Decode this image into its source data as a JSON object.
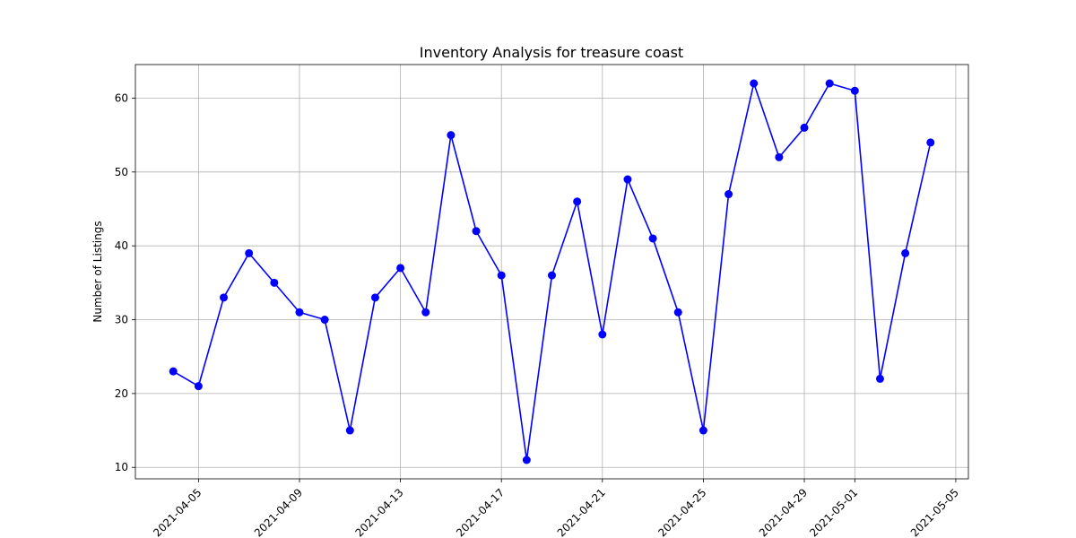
{
  "chart_data": {
    "type": "line",
    "title": "Inventory Analysis for treasure coast",
    "xlabel": "",
    "ylabel": "Number of Listings",
    "x": [
      "2021-04-04",
      "2021-04-05",
      "2021-04-06",
      "2021-04-07",
      "2021-04-08",
      "2021-04-09",
      "2021-04-10",
      "2021-04-11",
      "2021-04-12",
      "2021-04-13",
      "2021-04-14",
      "2021-04-15",
      "2021-04-16",
      "2021-04-17",
      "2021-04-18",
      "2021-04-19",
      "2021-04-20",
      "2021-04-21",
      "2021-04-22",
      "2021-04-23",
      "2021-04-24",
      "2021-04-25",
      "2021-04-26",
      "2021-04-27",
      "2021-04-28",
      "2021-04-29",
      "2021-04-30",
      "2021-05-01",
      "2021-05-02",
      "2021-05-03",
      "2021-05-04"
    ],
    "series": [
      {
        "values": [
          23,
          21,
          33,
          39,
          35,
          31,
          30,
          15,
          33,
          37,
          31,
          55,
          42,
          36,
          11,
          36,
          46,
          28,
          49,
          41,
          31,
          15,
          47,
          62,
          52,
          56,
          62,
          61,
          22,
          39,
          54
        ],
        "color": "#0000ff",
        "marker": "circle"
      }
    ],
    "xticks": [
      "2021-04-05",
      "2021-04-09",
      "2021-04-13",
      "2021-04-17",
      "2021-04-21",
      "2021-04-25",
      "2021-04-29",
      "2021-05-01",
      "2021-05-05"
    ],
    "yticks": [
      10,
      20,
      30,
      40,
      50,
      60
    ],
    "xlim": [
      "2021-04-02.5",
      "2021-05-05.5"
    ],
    "ylim": [
      8.45,
      64.55
    ],
    "grid": true,
    "legend": "none"
  }
}
